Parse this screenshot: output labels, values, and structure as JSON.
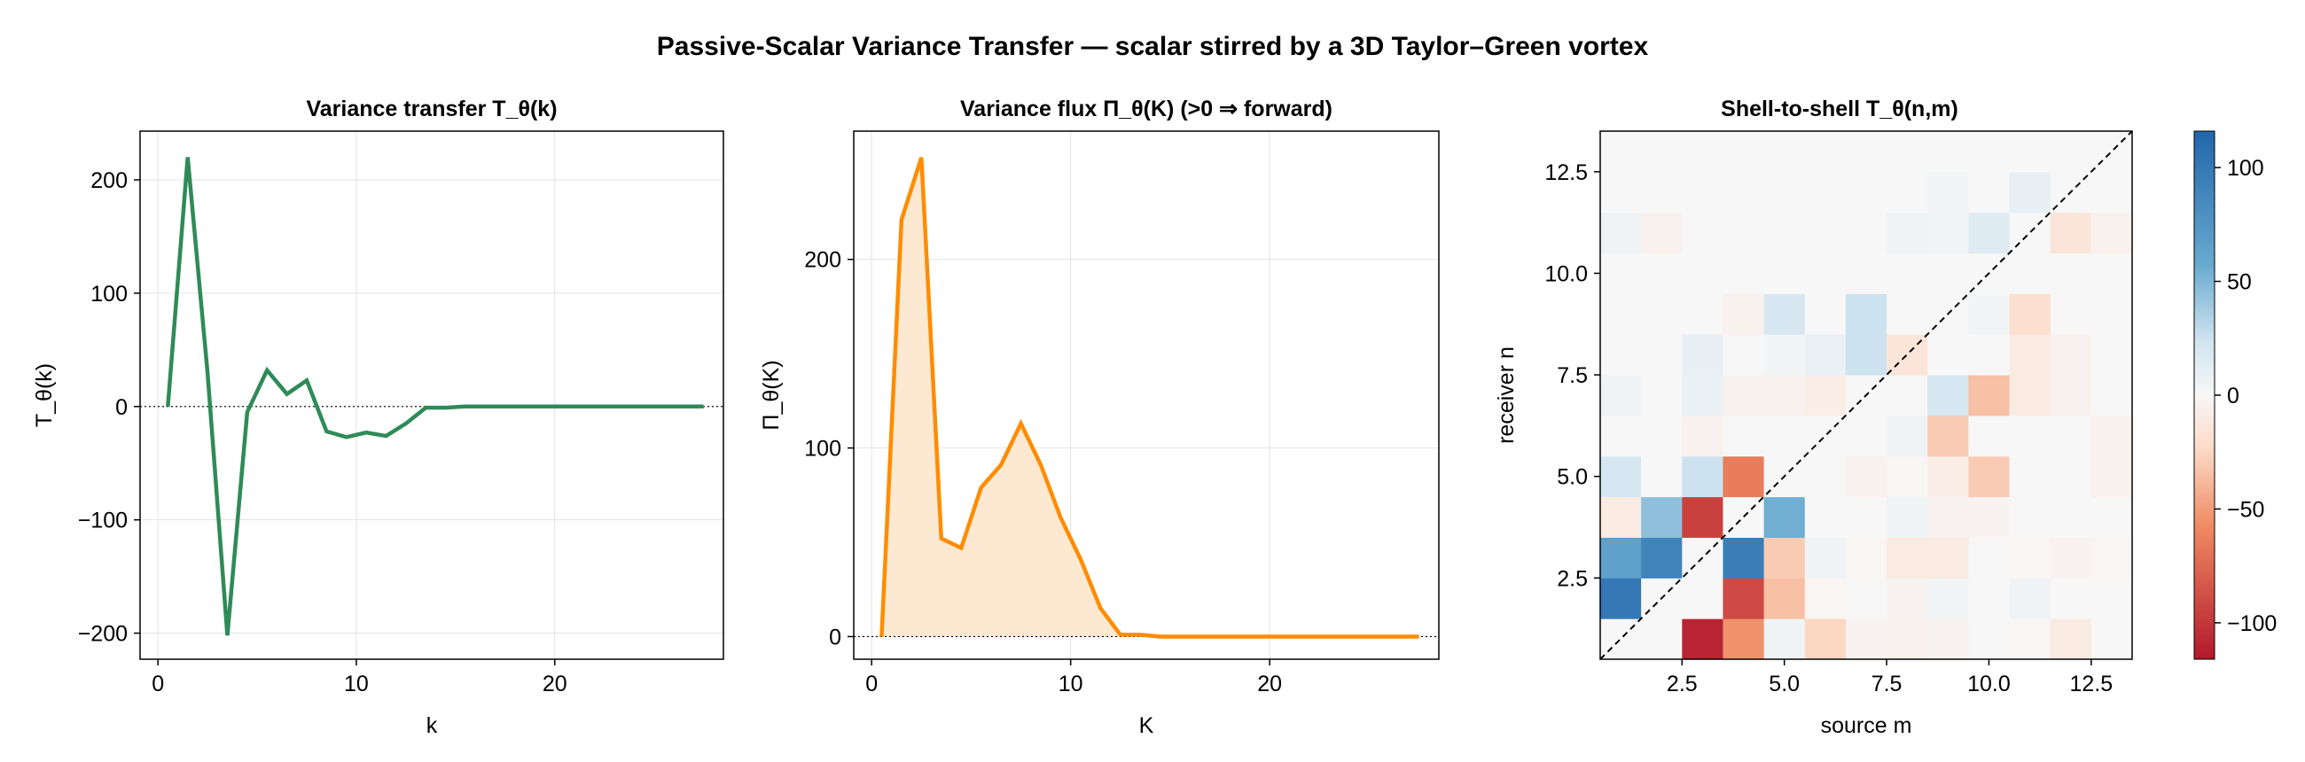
{
  "figure": {
    "title": "Passive-Scalar Variance Transfer — scalar stirred by a 3D Taylor–Green vortex"
  },
  "chart_data": [
    {
      "type": "line",
      "title": "Variance transfer T_θ(k)",
      "xlabel": "k",
      "ylabel": "T_θ(k)",
      "xlim": [
        -0.9,
        28.5
      ],
      "ylim": [
        -223,
        243
      ],
      "xticks": [
        0,
        10,
        20
      ],
      "yticks": [
        -200,
        -100,
        0,
        100,
        200
      ],
      "xtick_labels": [
        "0",
        "10",
        "20"
      ],
      "ytick_labels": [
        "−200",
        "−100",
        "0",
        "100",
        "200"
      ],
      "grid": true,
      "zero_line": true,
      "color": "#2e8b57",
      "x": [
        0.5,
        1.5,
        2.5,
        3.5,
        4.5,
        5.5,
        6.5,
        7.5,
        8.5,
        9.5,
        10.5,
        11.5,
        12.5,
        13.5,
        14.5,
        15.5,
        16.5,
        17.5,
        18.5,
        19.5,
        20.5,
        21.5,
        22.5,
        23.5,
        24.5,
        25.5,
        26.5,
        27.5
      ],
      "y": [
        0,
        220,
        30,
        -202,
        -5,
        32,
        11,
        23,
        -22,
        -27,
        -23,
        -26,
        -15,
        -1,
        -1,
        0,
        0,
        0,
        0,
        0,
        0,
        0,
        0,
        0,
        0,
        0,
        0,
        0
      ]
    },
    {
      "type": "area",
      "title": "Variance flux Π_θ(K)  (>0 ⇒ forward)",
      "xlabel": "K",
      "ylabel": "Π_θ(K)",
      "xlim": [
        -0.9,
        28.5
      ],
      "ylim": [
        -12,
        268
      ],
      "xticks": [
        0,
        10,
        20
      ],
      "yticks": [
        0,
        100,
        200
      ],
      "xtick_labels": [
        "0",
        "10",
        "20"
      ],
      "ytick_labels": [
        "0",
        "100",
        "200"
      ],
      "grid": true,
      "zero_line": true,
      "color": "#ff8c00",
      "fill_color": "#fde8d2",
      "x": [
        0.5,
        1.5,
        2.5,
        3.5,
        4.5,
        5.5,
        6.5,
        7.5,
        8.5,
        9.5,
        10.5,
        11.5,
        12.5,
        13.5,
        14.5,
        15.5,
        16.5,
        17.5,
        18.5,
        19.5,
        20.5,
        21.5,
        22.5,
        23.5,
        24.5,
        25.5,
        26.5,
        27.5
      ],
      "y": [
        0,
        221,
        254,
        52,
        47,
        79,
        91,
        113,
        91,
        63,
        41,
        15,
        1,
        1,
        0,
        0,
        0,
        0,
        0,
        0,
        0,
        0,
        0,
        0,
        0,
        0,
        0,
        0
      ]
    },
    {
      "type": "heatmap",
      "title": "Shell-to-shell T_θ(n,m)",
      "xlabel": "source m",
      "ylabel": "receiver n",
      "xlim": [
        0.5,
        13.5
      ],
      "ylim": [
        0.5,
        13.5
      ],
      "xticks": [
        2.5,
        5,
        7.5,
        10,
        12.5
      ],
      "yticks": [
        2.5,
        5,
        7.5,
        10,
        12.5
      ],
      "xtick_labels": [
        "2.5",
        "5.0",
        "7.5",
        "10.0",
        "12.5"
      ],
      "ytick_labels": [
        "2.5",
        "5.0",
        "7.5",
        "10.0",
        "12.5"
      ],
      "colormap": "RdBu",
      "clim": [
        -116,
        116
      ],
      "colorbar_ticks": [
        -100,
        -50,
        0,
        50,
        100
      ],
      "colorbar_tick_labels": [
        "−100",
        "−50",
        "0",
        "50",
        "100"
      ],
      "diagonal_line": true,
      "rows_receiver_n_1_to_13": [
        [
          0,
          0,
          -110,
          -55,
          5,
          -25,
          -3,
          -5,
          -3,
          0,
          -2,
          -10,
          0
        ],
        [
          100,
          0,
          0,
          -90,
          -35,
          -2,
          0,
          -3,
          3,
          0,
          5,
          0,
          0
        ],
        [
          65,
          90,
          0,
          95,
          -30,
          5,
          -2,
          -10,
          -10,
          0,
          -2,
          -3,
          -2
        ],
        [
          -10,
          45,
          -95,
          0,
          55,
          0,
          0,
          5,
          -3,
          -3,
          0,
          0,
          0
        ],
        [
          20,
          0,
          25,
          -65,
          0,
          0,
          -5,
          -2,
          -8,
          -30,
          0,
          0,
          -5
        ],
        [
          0,
          0,
          -5,
          0,
          0,
          0,
          0,
          5,
          -30,
          0,
          0,
          0,
          -5
        ],
        [
          5,
          0,
          8,
          -5,
          -5,
          -8,
          0,
          0,
          20,
          -35,
          -10,
          -5,
          0
        ],
        [
          0,
          0,
          10,
          0,
          3,
          8,
          25,
          -15,
          0,
          0,
          -10,
          -5,
          0
        ],
        [
          0,
          0,
          0,
          -5,
          20,
          0,
          25,
          0,
          0,
          3,
          -20,
          0,
          0
        ],
        [
          0,
          0,
          0,
          0,
          0,
          0,
          0,
          0,
          0,
          0,
          0,
          0,
          0
        ],
        [
          5,
          -5,
          0,
          0,
          0,
          0,
          0,
          5,
          3,
          15,
          0,
          -15,
          -5
        ],
        [
          0,
          0,
          0,
          0,
          0,
          0,
          0,
          0,
          3,
          0,
          10,
          0,
          0
        ],
        [
          0,
          0,
          0,
          0,
          0,
          0,
          0,
          0,
          0,
          0,
          0,
          0,
          0
        ]
      ]
    }
  ]
}
